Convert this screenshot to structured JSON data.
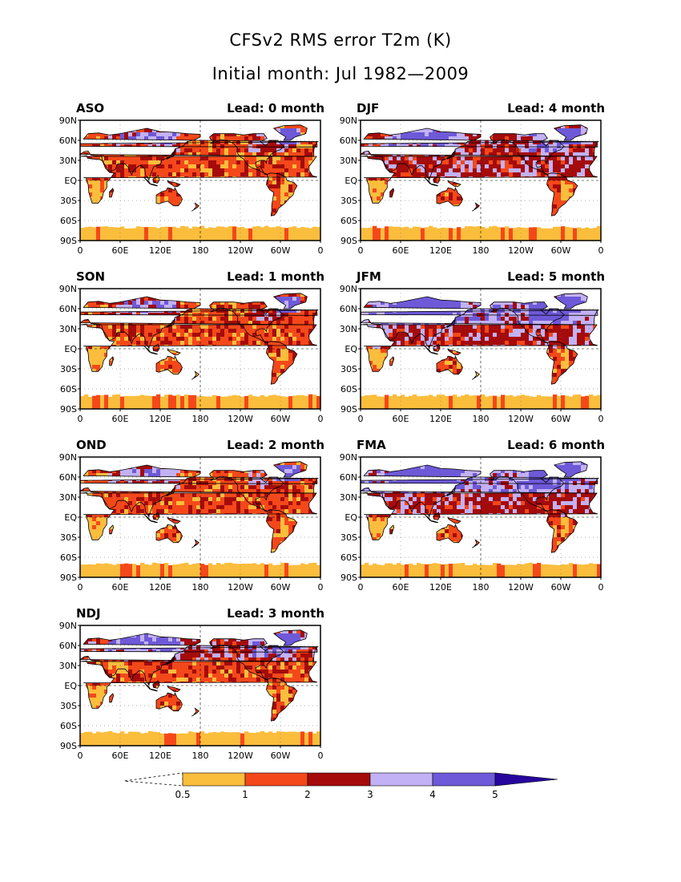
{
  "title": "CFSv2 RMS error T2m (K)",
  "subtitle": "Initial month: Jul 1982—2009",
  "panels": [
    {
      "season": "ASO",
      "lead": "Lead: 0 month",
      "intensity": 0
    },
    {
      "season": "DJF",
      "lead": "Lead: 4 month",
      "intensity": 4
    },
    {
      "season": "SON",
      "lead": "Lead: 1 month",
      "intensity": 1
    },
    {
      "season": "JFM",
      "lead": "Lead: 5 month",
      "intensity": 5
    },
    {
      "season": "OND",
      "lead": "Lead: 2 month",
      "intensity": 2
    },
    {
      "season": "FMA",
      "lead": "Lead: 6 month",
      "intensity": 6
    },
    {
      "season": "NDJ",
      "lead": "Lead: 3 month",
      "intensity": 3
    }
  ],
  "lat_labels": [
    "90N",
    "60N",
    "30N",
    "EQ",
    "30S",
    "60S",
    "90S"
  ],
  "lon_labels": [
    "0",
    "60E",
    "120E",
    "180",
    "120W",
    "60W",
    "0"
  ],
  "colorbar": {
    "colors": [
      "#fbbd3c",
      "#f4481a",
      "#a50b0b",
      "#c2b1f4",
      "#6e59d8",
      "#26069c"
    ],
    "labels": [
      "0.5",
      "1",
      "2",
      "3",
      "4",
      "5"
    ]
  }
}
